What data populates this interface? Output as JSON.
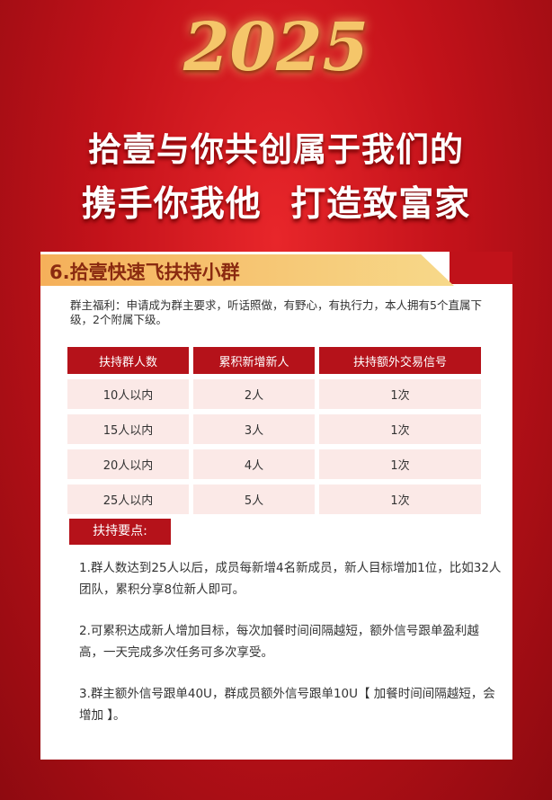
{
  "header": {
    "year": "2025",
    "line1": "拾壹与你共创属于我们的",
    "line2": "携手你我他  打造致富家"
  },
  "section": {
    "title": "6.拾壹快速飞扶持小群",
    "intro": "群主福利：申请成为群主要求，听话照做，有野心，有执行力，本人拥有5个直属下级，2个附属下级。",
    "table": {
      "headers": [
        "扶持群人数",
        "累积新增新人",
        "扶持额外交易信号"
      ],
      "rows": [
        [
          "10人以内",
          "2人",
          "1次"
        ],
        [
          "15人以内",
          "3人",
          "1次"
        ],
        [
          "20人以内",
          "4人",
          "1次"
        ],
        [
          "25人以内",
          "5人",
          "1次"
        ]
      ]
    },
    "points_label": "扶持要点:",
    "points": [
      "1.群人数达到25人以后，成员每新增4名新成员，新人目标增加1位，比如32人团队，累积分享8位新人即可。",
      "2.可累积达成新人增加目标，每次加餐时间间隔越短，额外信号跟单盈利越高，一天完成多次任务可多次享受。",
      "3.群主额外信号跟单40U，群成员额外信号跟单10U【 加餐时间间隔越短，会增加 】。"
    ]
  },
  "colors": {
    "background": "#c3121a",
    "accent": "#b5121a",
    "gold": "#f5c66a",
    "row_fill": "#fbe9e7"
  }
}
